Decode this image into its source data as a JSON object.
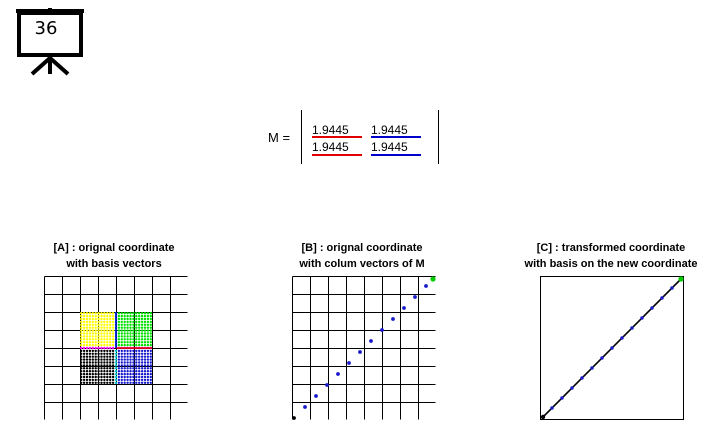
{
  "slide_number": "36",
  "matrix": {
    "label": "M =",
    "rows": [
      [
        "1.9445",
        "1.9445"
      ],
      [
        "1.9445",
        "1.9445"
      ]
    ],
    "col_colors": [
      "#e00000",
      "#0000cc"
    ]
  },
  "panels": [
    {
      "title_line1": "[A] : orignal coordinate",
      "title_line2": "with basis vectors"
    },
    {
      "title_line1": "[B] : orignal coordinate",
      "title_line2": "with colum vectors of M"
    },
    {
      "title_line1": "[C] : transformed coordinate",
      "title_line2": "with basis on the new coordinate"
    }
  ],
  "colors": {
    "q1": "#00e000",
    "q2": "#ffff00",
    "q3": "#000000",
    "q4": "#1a1acc",
    "axis_x": "#e00000",
    "axis_y": "#0000cc",
    "axis_mix": "#ff00ff",
    "axis_cyan": "#00cccc",
    "dots": "#1a1acc",
    "endpoint": "#00cc00"
  }
}
